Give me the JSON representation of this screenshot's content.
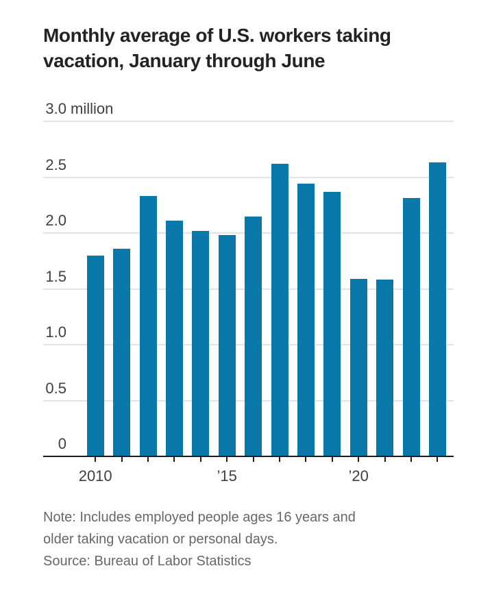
{
  "chart_data": {
    "type": "bar",
    "title": "Monthly average of U.S. workers taking vacation, January through June",
    "unit": "million",
    "categories": [
      "2010",
      "2011",
      "2012",
      "2013",
      "2014",
      "2015",
      "2016",
      "2017",
      "2018",
      "2019",
      "2020",
      "2021",
      "2022",
      "2023"
    ],
    "values": [
      1.8,
      1.86,
      2.33,
      2.11,
      2.02,
      1.98,
      2.15,
      2.62,
      2.44,
      2.37,
      1.59,
      1.58,
      2.31,
      2.63
    ],
    "ylim": [
      0,
      3.0
    ],
    "grid": true,
    "legend_position": "none",
    "bar_color": "#0a78aa",
    "y_ticks": [
      {
        "label": "3.0",
        "suffix": "million",
        "value": 3.0,
        "gridline": true
      },
      {
        "label": "2.5",
        "suffix": "",
        "value": 2.5,
        "gridline": true
      },
      {
        "label": "2.0",
        "suffix": "",
        "value": 2.0,
        "gridline": true
      },
      {
        "label": "1.5",
        "suffix": "",
        "value": 1.5,
        "gridline": true
      },
      {
        "label": "1.0",
        "suffix": "",
        "value": 1.0,
        "gridline": true
      },
      {
        "label": "0.5",
        "suffix": "",
        "value": 0.5,
        "gridline": true
      },
      {
        "label": "0",
        "suffix": "",
        "value": 0.0,
        "gridline": false
      }
    ],
    "x_ticks": [
      {
        "index": 0,
        "label": "2010"
      },
      {
        "index": 5,
        "label": "’15"
      },
      {
        "index": 10,
        "label": "’20"
      }
    ]
  },
  "footer": {
    "note": "Note: Includes employed people ages 16 years and older taking vacation or personal days.",
    "source": "Source: Bureau of Labor Statistics"
  }
}
